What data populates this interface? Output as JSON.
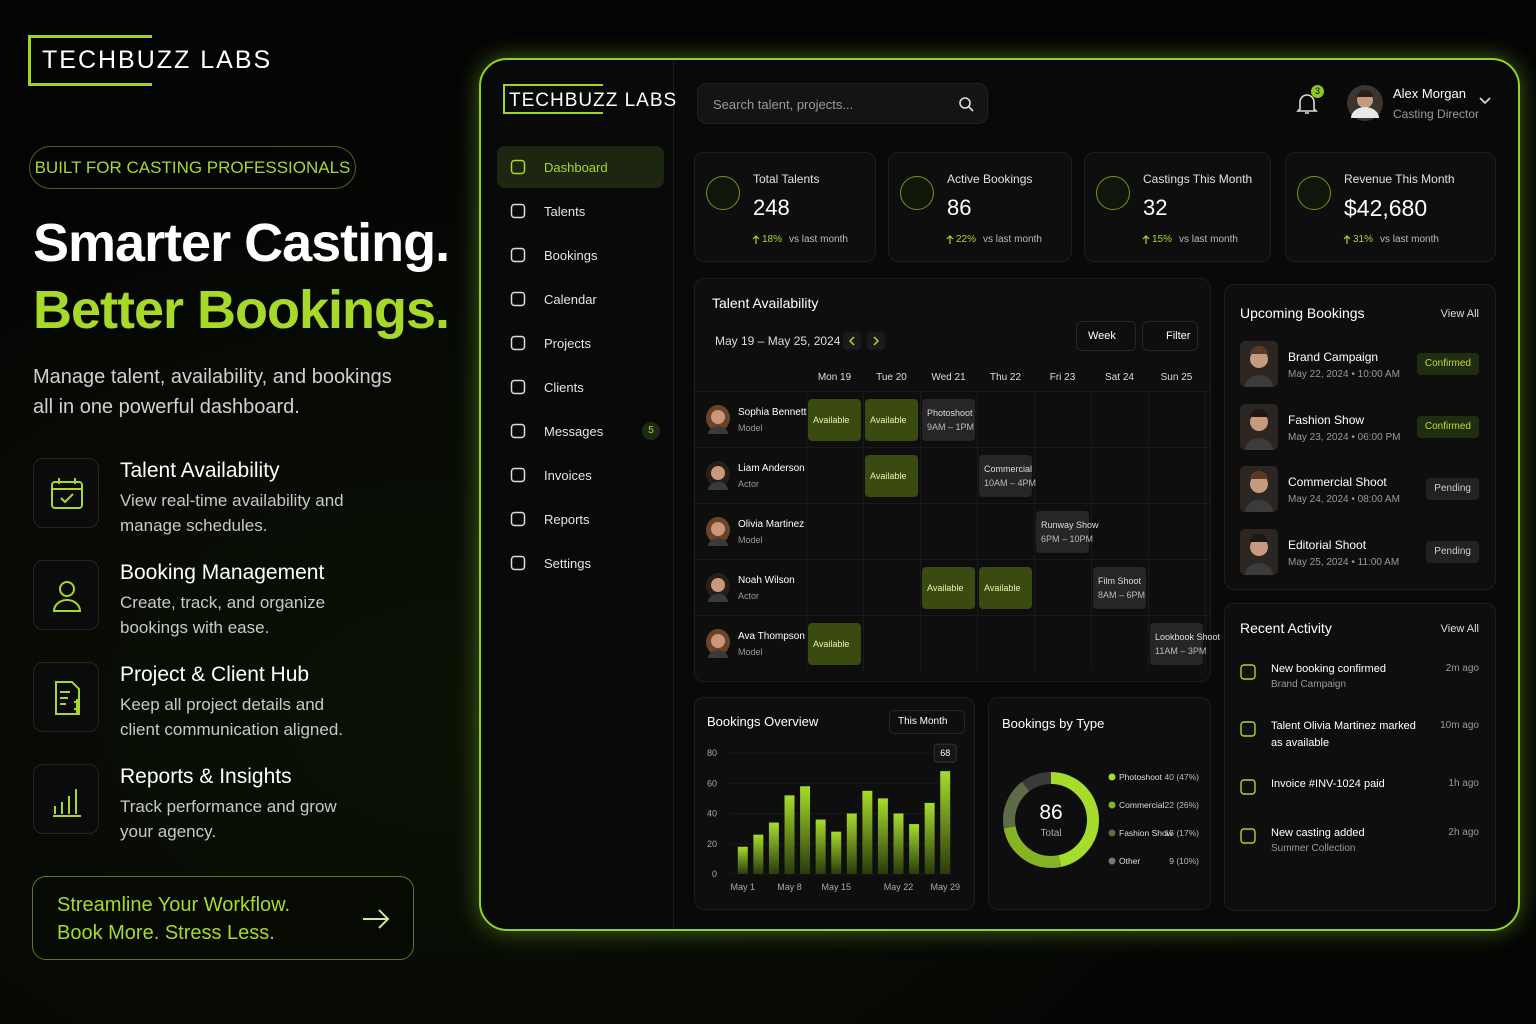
{
  "brand": "TECHBUZZ LABS",
  "hero": {
    "badge": "BUILT FOR CASTING PROFESSIONALS",
    "headline": "Smarter Casting.",
    "headline_accent": "Better Bookings.",
    "subtitle": "Manage talent, availability, and bookings all in one powerful dashboard."
  },
  "features": [
    {
      "title": "Talent Availability",
      "text": "View real-time availability and manage schedules."
    },
    {
      "title": "Booking Management",
      "text": "Create, track, and organize bookings with ease."
    },
    {
      "title": "Project & Client Hub",
      "text": "Keep all project details and client communication aligned."
    },
    {
      "title": "Reports & Insights",
      "text": "Track performance and grow your agency."
    }
  ],
  "cta": {
    "line1": "Streamline Your Workflow.",
    "line2": "Book More. Stress Less."
  },
  "app": {
    "brand": "TECHBUZZ LABS",
    "search_placeholder": "Search talent, projects...",
    "notifications": 3,
    "user": {
      "name": "Alex Morgan",
      "role": "Casting Director"
    },
    "nav": [
      {
        "label": "Dashboard",
        "active": true
      },
      {
        "label": "Talents"
      },
      {
        "label": "Bookings"
      },
      {
        "label": "Calendar"
      },
      {
        "label": "Projects"
      },
      {
        "label": "Clients"
      },
      {
        "label": "Messages",
        "badge": 5
      },
      {
        "label": "Invoices"
      },
      {
        "label": "Reports"
      },
      {
        "label": "Settings"
      }
    ],
    "stats": [
      {
        "label": "Total Talents",
        "value": "248",
        "change": "18%",
        "note": "vs last month"
      },
      {
        "label": "Active Bookings",
        "value": "86",
        "change": "22%",
        "note": "vs last month"
      },
      {
        "label": "Castings This Month",
        "value": "32",
        "change": "15%",
        "note": "vs last month"
      },
      {
        "label": "Revenue This Month",
        "value": "$42,680",
        "change": "31%",
        "note": "vs last month"
      }
    ],
    "availability": {
      "title": "Talent Availability",
      "range": "May 19 – May 25, 2024",
      "view": "Week",
      "filter": "Filter",
      "days": [
        "Mon 19",
        "Tue 20",
        "Wed 21",
        "Thu 22",
        "Fri 23",
        "Sat 24",
        "Sun 25"
      ],
      "talents": [
        {
          "name": "Sophia Bennett",
          "role": "Model",
          "slots": [
            {
              "label": "Available"
            },
            {
              "label": "Available"
            },
            {
              "label": "Photoshoot",
              "time": "9AM – 1PM"
            },
            null,
            null,
            null,
            null
          ]
        },
        {
          "name": "Liam Anderson",
          "role": "Actor",
          "slots": [
            null,
            {
              "label": "Available"
            },
            null,
            {
              "label": "Commercial",
              "time": "10AM – 4PM"
            },
            null,
            null,
            null
          ]
        },
        {
          "name": "Olivia Martinez",
          "role": "Model",
          "slots": [
            null,
            null,
            null,
            null,
            {
              "label": "Runway Show",
              "time": "6PM – 10PM"
            },
            null,
            null
          ]
        },
        {
          "name": "Noah Wilson",
          "role": "Actor",
          "slots": [
            null,
            null,
            {
              "label": "Available"
            },
            {
              "label": "Available"
            },
            null,
            {
              "label": "Film Shoot",
              "time": "8AM – 6PM"
            },
            null
          ]
        },
        {
          "name": "Ava Thompson",
          "role": "Model",
          "slots": [
            {
              "label": "Available"
            },
            null,
            null,
            null,
            null,
            null,
            {
              "label": "Lookbook Shoot",
              "time": "11AM – 3PM"
            }
          ]
        }
      ]
    },
    "upcoming": {
      "title": "Upcoming Bookings",
      "action": "View All",
      "items": [
        {
          "name": "Brand Campaign",
          "when": "May 22, 2024 • 10:00 AM",
          "status": "Confirmed"
        },
        {
          "name": "Fashion Show",
          "when": "May 23, 2024 • 06:00 PM",
          "status": "Confirmed"
        },
        {
          "name": "Commercial Shoot",
          "when": "May 24, 2024 • 08:00 AM",
          "status": "Pending"
        },
        {
          "name": "Editorial Shoot",
          "when": "May 25, 2024 • 11:00 AM",
          "status": "Pending"
        }
      ]
    },
    "activity": {
      "title": "Recent Activity",
      "action": "View All",
      "items": [
        {
          "text": "New booking confirmed",
          "detail": "Brand Campaign",
          "time": "2m ago"
        },
        {
          "text": "Talent Olivia Martinez marked as available",
          "time": "10m ago"
        },
        {
          "text": "Invoice #INV-1024 paid",
          "time": "1h ago"
        },
        {
          "text": "New casting added",
          "detail": "Summer Collection",
          "time": "2h ago"
        }
      ]
    },
    "overview": {
      "type": "bar",
      "title": "Bookings Overview",
      "period": "This Month",
      "categories": [
        "May 1",
        null,
        null,
        "May 8",
        null,
        null,
        "May 15",
        null,
        null,
        null,
        "May 22",
        null,
        null,
        "May 29"
      ],
      "values": [
        18,
        26,
        34,
        52,
        58,
        36,
        28,
        40,
        55,
        50,
        40,
        33,
        47,
        68
      ],
      "ylim": [
        0,
        80
      ],
      "yticks": [
        0,
        20,
        40,
        60,
        80
      ],
      "color": "#a6dc2c"
    },
    "by_type": {
      "type": "pie",
      "title": "Bookings by Type",
      "total": 86,
      "total_label": "Total",
      "series": [
        {
          "name": "Photoshoot",
          "value": 40,
          "label": "40 (47%)",
          "color": "#a6dc2c"
        },
        {
          "name": "Commercial",
          "value": 22,
          "label": "22 (26%)",
          "color": "#86b324"
        },
        {
          "name": "Fashion Show",
          "value": 15,
          "label": "15 (17%)",
          "color": "#5e6a48"
        },
        {
          "name": "Other",
          "value": 9,
          "label": "9 (10%)",
          "color": "#3a3a3a"
        }
      ]
    }
  }
}
